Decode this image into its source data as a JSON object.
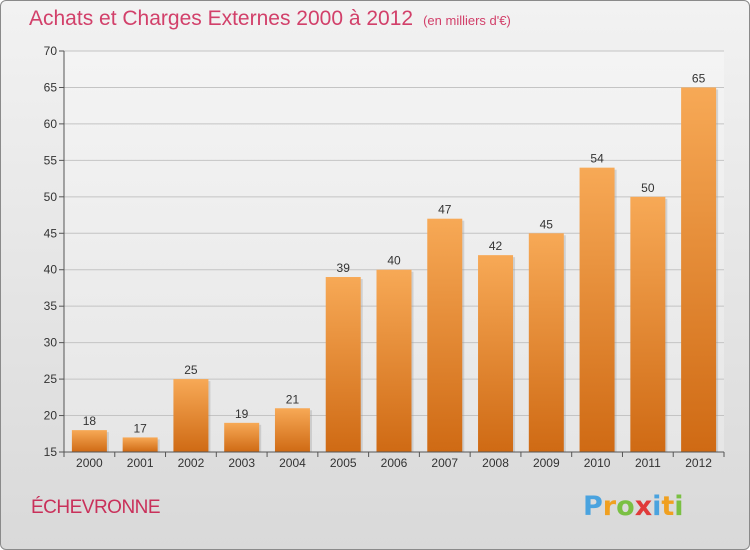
{
  "title": "Achats et Charges Externes 2000 à 2012",
  "subtitle": "(en milliers d'€)",
  "commune": "ÉCHEVRONNE",
  "logo": {
    "letters": [
      "P",
      "r",
      "o",
      "x",
      "i",
      "t",
      "i"
    ],
    "colors": [
      "#4aa3df",
      "#f0a020",
      "#7ac043",
      "#e03a3a",
      "#4aa3df",
      "#f0a020",
      "#7ac043"
    ]
  },
  "colors": {
    "title": "#d2406a",
    "bar_top": "#f7a956",
    "bar_bottom": "#cf6a14"
  },
  "chart_data": {
    "type": "bar",
    "title": "Achats et Charges Externes 2000 à 2012",
    "subtitle": "(en milliers d'€)",
    "categories": [
      "2000",
      "2001",
      "2002",
      "2003",
      "2004",
      "2005",
      "2006",
      "2007",
      "2008",
      "2009",
      "2010",
      "2011",
      "2012"
    ],
    "values": [
      18,
      17,
      25,
      19,
      21,
      39,
      40,
      47,
      42,
      45,
      54,
      50,
      65
    ],
    "ylim": [
      15,
      70
    ],
    "yticks": [
      15,
      20,
      25,
      30,
      35,
      40,
      45,
      50,
      55,
      60,
      65,
      70
    ],
    "grid": true,
    "legend": "none"
  }
}
